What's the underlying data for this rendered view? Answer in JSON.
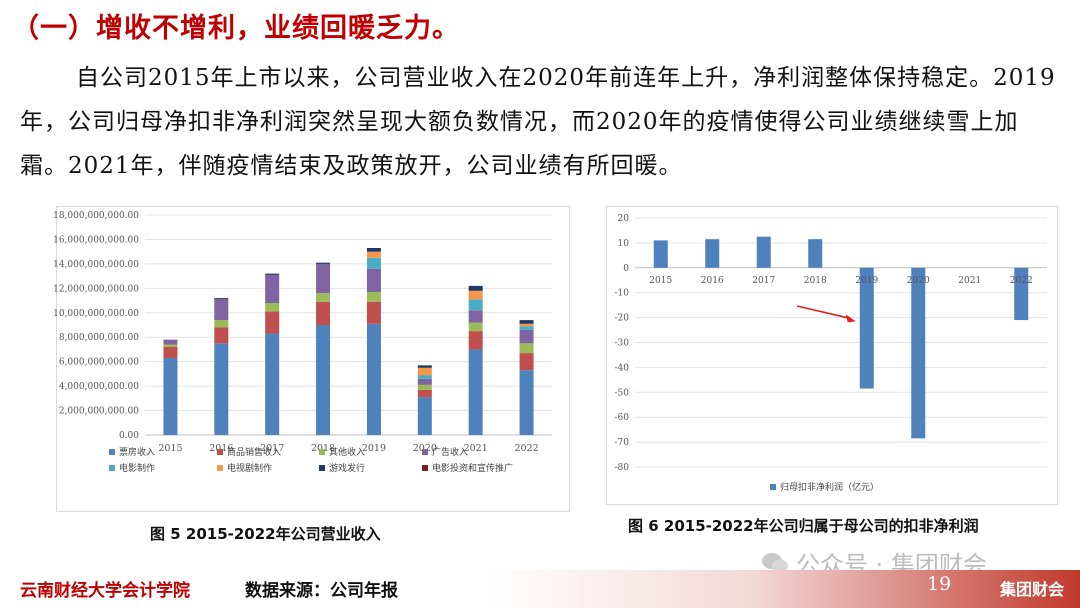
{
  "heading": "（一）增收不增利，业绩回暖乏力。",
  "paragraph": "自公司2015年上市以来，公司营业收入在2020年前连年上升，净利润整体保持稳定。2019年，公司归母净扣非净利润突然呈现大额负数情况，而2020年的疫情使得公司业绩继续雪上加霜。2021年，伴随疫情结束及政策放开，公司业绩有所回暖。",
  "caption1": "图 5   2015-2022年公司营业收入",
  "caption2": "图 6   2015-2022年公司归属于母公司的扣非净利润",
  "footer": {
    "school": "云南财经大学会计学院",
    "source": "数据来源：公司年报",
    "page": "19",
    "brand": "集团财会"
  },
  "watermark": "公众号 · 集团财会",
  "colors": {
    "heading": "#c00000",
    "票房收入": "#4f81bd",
    "商品销售收入": "#c0504d",
    "其他收入": "#9bbb59",
    "广告收入": "#8064a2",
    "电影制作": "#4bacc6",
    "电视剧制作": "#f79646",
    "游戏发行": "#1f3864",
    "电影投资和宣传推广": "#7f2020",
    "profit_bar": "#4f81bd"
  },
  "chart_data": [
    {
      "type": "bar",
      "stacked": true,
      "categories": [
        "2015",
        "2016",
        "2017",
        "2018",
        "2019",
        "2020",
        "2021",
        "2022"
      ],
      "ylim": [
        0,
        18000000000
      ],
      "yticks": [
        "0.00",
        "2,000,000,000.00",
        "4,000,000,000.00",
        "6,000,000,000.00",
        "8,000,000,000.00",
        "10,000,000,000.00",
        "12,000,000,000.00",
        "14,000,000,000.00",
        "16,000,000,000.00",
        "18,000,000,000.00"
      ],
      "grid": true,
      "legend_position": "bottom",
      "series": [
        {
          "name": "票房收入",
          "values": [
            6300000000,
            7500000000,
            8300000000,
            9000000000,
            9100000000,
            3100000000,
            7000000000,
            5300000000
          ]
        },
        {
          "name": "商品销售收入",
          "values": [
            900000000,
            1300000000,
            1800000000,
            1900000000,
            1800000000,
            600000000,
            1500000000,
            1400000000
          ]
        },
        {
          "name": "其他收入",
          "values": [
            200000000,
            600000000,
            700000000,
            700000000,
            800000000,
            400000000,
            700000000,
            800000000
          ]
        },
        {
          "name": "广告收入",
          "values": [
            400000000,
            1700000000,
            2300000000,
            2400000000,
            1900000000,
            500000000,
            1000000000,
            1100000000
          ]
        },
        {
          "name": "电影制作",
          "values": [
            0,
            0,
            0,
            0,
            900000000,
            300000000,
            900000000,
            300000000
          ]
        },
        {
          "name": "电视剧制作",
          "values": [
            0,
            0,
            0,
            0,
            500000000,
            600000000,
            700000000,
            200000000
          ]
        },
        {
          "name": "游戏发行",
          "values": [
            0,
            100000000,
            100000000,
            100000000,
            300000000,
            200000000,
            400000000,
            300000000
          ]
        },
        {
          "name": "电影投资和宣传推广",
          "values": [
            0,
            0,
            0,
            0,
            0,
            0,
            0,
            0
          ]
        }
      ]
    },
    {
      "type": "bar",
      "categories": [
        "2015",
        "2016",
        "2017",
        "2018",
        "2019",
        "2020",
        "2021",
        "2022"
      ],
      "ylim": [
        -80,
        20
      ],
      "yticks": [
        "20",
        "10",
        "0",
        "-10",
        "-20",
        "-30",
        "-40",
        "-50",
        "-60",
        "-70",
        "-80"
      ],
      "grid": true,
      "legend_position": "bottom",
      "series": [
        {
          "name": "归母扣非净利润（亿元）",
          "values": [
            11,
            11.5,
            12.5,
            11.5,
            -48.5,
            -68.5,
            0,
            -21
          ]
        }
      ],
      "annotation": "red arrow pointing to 2019"
    }
  ]
}
